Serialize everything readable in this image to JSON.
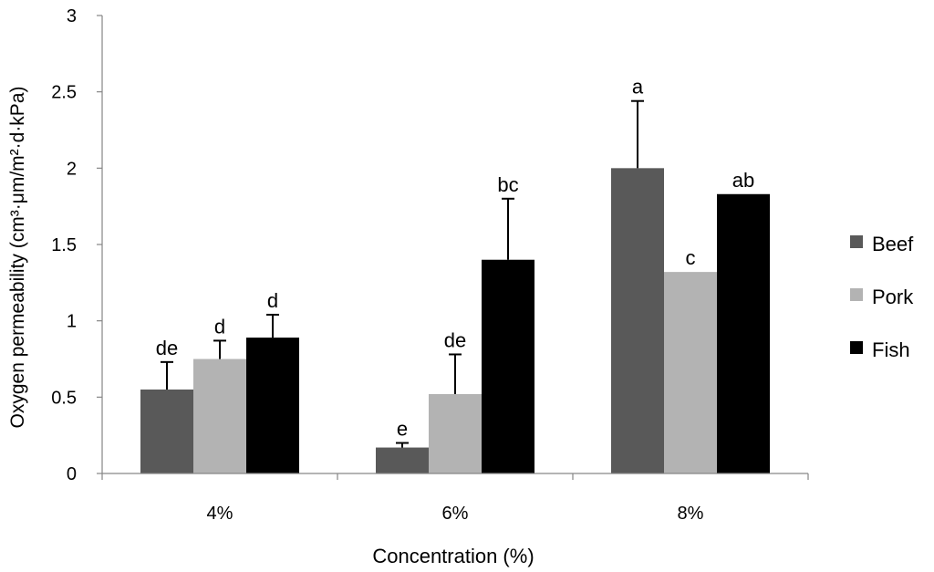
{
  "chart_data": {
    "type": "bar",
    "title": "",
    "xlabel": "Concentration (%)",
    "ylabel": "Oxygen permeability (cm³·μm/m²·d·kPa)",
    "categories": [
      "4%",
      "6%",
      "8%"
    ],
    "ylim": [
      0,
      3
    ],
    "yticks": [
      0,
      0.5,
      1,
      1.5,
      2,
      2.5,
      3
    ],
    "ytick_labels": [
      "0",
      "0.5",
      "1",
      "1.5",
      "2",
      "2.5",
      "3"
    ],
    "grid": false,
    "legend_position": "right",
    "series": [
      {
        "name": "Beef",
        "color": "#595959",
        "values": [
          0.55,
          0.17,
          2.0
        ],
        "errors": [
          0.18,
          0.03,
          0.44
        ],
        "labels": [
          "de",
          "e",
          "a"
        ]
      },
      {
        "name": "Pork",
        "color": "#b3b3b3",
        "values": [
          0.75,
          0.52,
          1.32
        ],
        "errors": [
          0.12,
          0.26,
          0.0
        ],
        "labels": [
          "d",
          "de",
          "c"
        ]
      },
      {
        "name": "Fish",
        "color": "#000000",
        "values": [
          0.89,
          1.4,
          1.83
        ],
        "errors": [
          0.15,
          0.4,
          0.0
        ],
        "labels": [
          "d",
          "bc",
          "ab"
        ]
      }
    ]
  }
}
